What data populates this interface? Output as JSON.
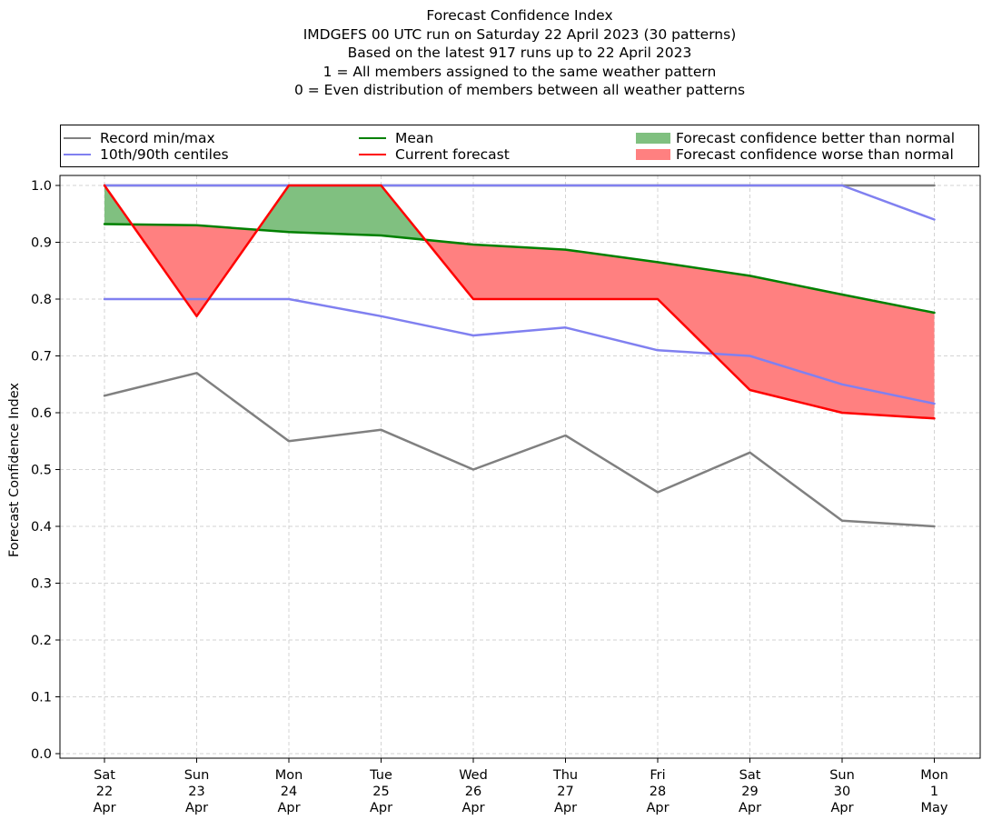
{
  "title_lines": [
    "Forecast Confidence Index",
    "IMDGEFS 00 UTC run on Saturday 22 April 2023 (30 patterns)",
    "Based on the latest 917 runs up to 22 April 2023",
    "1 = All members assigned to the same weather pattern",
    "0 = Even distribution of members between all weather patterns"
  ],
  "legend": {
    "record": "Record min/max",
    "centiles": "10th/90th centiles",
    "mean": "Mean",
    "current": "Current forecast",
    "better": "Forecast confidence better than normal",
    "worse": "Forecast confidence worse than normal"
  },
  "colors": {
    "record": "#808080",
    "centiles": "#8080f0",
    "mean": "#008000",
    "current": "#ff0000",
    "better": "#80c080",
    "worse": "#ff8080",
    "grid": "#d3d3d3"
  },
  "chart_data": {
    "type": "line",
    "ylabel": "Forecast Confidence Index",
    "ylim": [
      0.0,
      1.0
    ],
    "yticks": [
      "0.0",
      "0.1",
      "0.2",
      "0.3",
      "0.4",
      "0.5",
      "0.6",
      "0.7",
      "0.8",
      "0.9",
      "1.0"
    ],
    "grid": true,
    "legend_position": "top",
    "categories": [
      [
        "Sat",
        "22",
        "Apr"
      ],
      [
        "Sun",
        "23",
        "Apr"
      ],
      [
        "Mon",
        "24",
        "Apr"
      ],
      [
        "Tue",
        "25",
        "Apr"
      ],
      [
        "Wed",
        "26",
        "Apr"
      ],
      [
        "Thu",
        "27",
        "Apr"
      ],
      [
        "Fri",
        "28",
        "Apr"
      ],
      [
        "Sat",
        "29",
        "Apr"
      ],
      [
        "Sun",
        "30",
        "Apr"
      ],
      [
        "Mon",
        "1",
        "May"
      ]
    ],
    "series": [
      {
        "name": "Record min",
        "values": [
          0.63,
          0.67,
          0.55,
          0.57,
          0.5,
          0.56,
          0.46,
          0.53,
          0.41,
          0.4
        ]
      },
      {
        "name": "Record max",
        "values": [
          1.0,
          1.0,
          1.0,
          1.0,
          1.0,
          1.0,
          1.0,
          1.0,
          1.0,
          1.0
        ]
      },
      {
        "name": "10th centile",
        "values": [
          0.8,
          0.8,
          0.8,
          0.77,
          0.736,
          0.75,
          0.71,
          0.7,
          0.65,
          0.616
        ]
      },
      {
        "name": "90th centile",
        "values": [
          1.0,
          1.0,
          1.0,
          1.0,
          1.0,
          1.0,
          1.0,
          1.0,
          1.0,
          0.94
        ]
      },
      {
        "name": "Mean",
        "values": [
          0.932,
          0.93,
          0.918,
          0.912,
          0.896,
          0.887,
          0.865,
          0.841,
          0.808,
          0.776
        ]
      },
      {
        "name": "Current forecast",
        "values": [
          1.0,
          0.77,
          1.0,
          1.0,
          0.8,
          0.8,
          0.8,
          0.64,
          0.6,
          0.59
        ]
      }
    ]
  }
}
